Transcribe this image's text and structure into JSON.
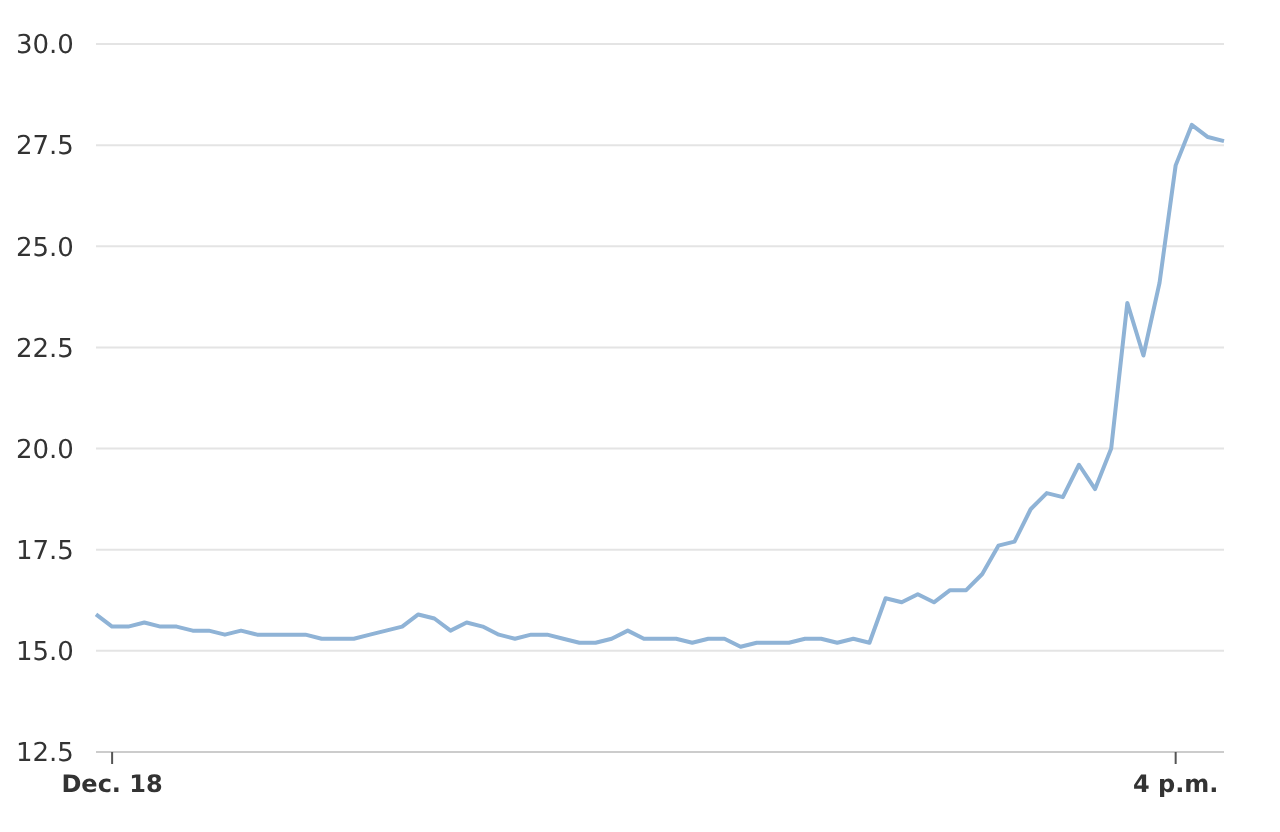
{
  "chart_data": {
    "type": "line",
    "color": "#8fb3d6",
    "grid": "y",
    "marker": "none",
    "line_style": "solid",
    "categories": [
      null,
      "Dec. 18",
      null,
      null,
      null,
      null,
      null,
      null,
      null,
      null,
      null,
      null,
      null,
      null,
      null,
      null,
      null,
      null,
      null,
      null,
      null,
      null,
      null,
      null,
      null,
      null,
      null,
      null,
      null,
      null,
      null,
      null,
      null,
      null,
      null,
      null,
      null,
      null,
      null,
      null,
      null,
      null,
      null,
      null,
      null,
      null,
      null,
      null,
      null,
      null,
      null,
      null,
      null,
      null,
      null,
      null,
      null,
      null,
      null,
      null,
      null,
      null,
      null,
      null,
      null,
      null,
      null,
      "4 p.m.",
      null,
      null,
      null
    ],
    "values": [
      15.9,
      15.6,
      15.6,
      15.7,
      15.6,
      15.6,
      15.5,
      15.5,
      15.4,
      15.5,
      15.4,
      15.4,
      15.4,
      15.4,
      15.3,
      15.3,
      15.3,
      15.4,
      15.5,
      15.6,
      15.9,
      15.8,
      15.5,
      15.7,
      15.6,
      15.4,
      15.3,
      15.4,
      15.4,
      15.3,
      15.2,
      15.2,
      15.3,
      15.5,
      15.3,
      15.3,
      15.3,
      15.2,
      15.3,
      15.3,
      15.1,
      15.2,
      15.2,
      15.2,
      15.3,
      15.3,
      15.2,
      15.3,
      15.2,
      16.3,
      16.2,
      16.4,
      16.2,
      16.5,
      16.5,
      16.9,
      17.6,
      17.7,
      18.5,
      18.9,
      18.8,
      19.6,
      19.0,
      20.0,
      23.6,
      22.3,
      24.1,
      27.0,
      28.0,
      27.7,
      27.6
    ],
    "ylim": [
      12.5,
      30
    ],
    "yticks": [
      {
        "value": 12.5,
        "label": "12.5"
      },
      {
        "value": 15,
        "label": "15.0"
      },
      {
        "value": 17.5,
        "label": "17.5"
      },
      {
        "value": 20,
        "label": "20.0"
      },
      {
        "value": 22.5,
        "label": "22.5"
      },
      {
        "value": 25,
        "label": "25.0"
      },
      {
        "value": 27.5,
        "label": "27.5"
      },
      {
        "value": 30,
        "label": "30.0"
      }
    ]
  }
}
